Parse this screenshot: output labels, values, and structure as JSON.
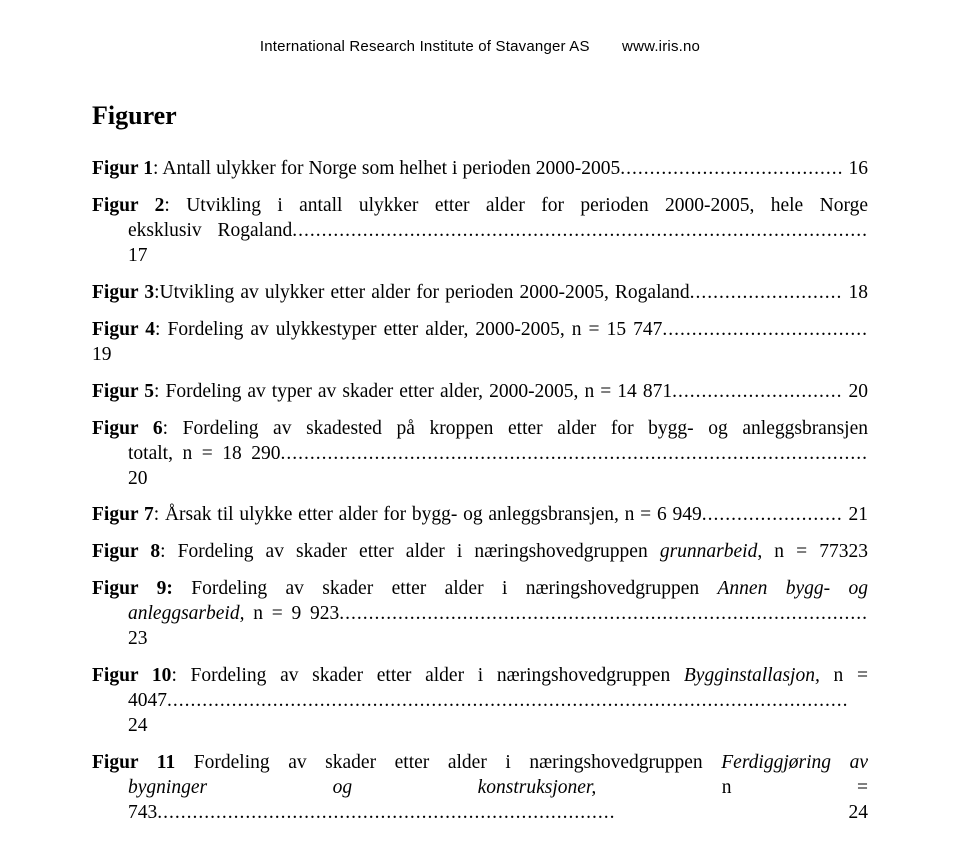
{
  "header": {
    "institute": "International Research Institute of Stavanger AS",
    "url": "www.iris.no"
  },
  "section_title": "Figurer",
  "entries": [
    {
      "label_bold": "Figur 1",
      "text": ": Antall ulykker for Norge som helhet i perioden 2000-2005",
      "page": "16",
      "two_line": false
    },
    {
      "label_bold": "Figur 2",
      "line1": ": Utvikling i antall ulykker etter alder for perioden 2000-2005, hele Norge",
      "line2_text": "eksklusiv Rogaland",
      "page": "17",
      "two_line": true
    },
    {
      "label_bold": "Figur 3",
      "text": ":Utvikling av ulykker etter alder for perioden 2000-2005, Rogaland",
      "page": "18",
      "two_line": false
    },
    {
      "label_bold": "Figur 4",
      "text": ": Fordeling av ulykkestyper etter alder, 2000-2005, n = 15 747",
      "page": "19",
      "two_line": false
    },
    {
      "label_bold": "Figur 5",
      "text": ": Fordeling av typer av skader etter alder, 2000-2005, n = 14 871",
      "page": "20",
      "two_line": false
    },
    {
      "label_bold": "Figur 6",
      "line1": ": Fordeling av skadested på kroppen etter alder for bygg- og anleggsbransjen",
      "line2_text": "totalt, n = 18 290",
      "page": "20",
      "two_line": true
    },
    {
      "label_bold": "Figur 7",
      "text": ": Årsak til ulykke etter alder for bygg- og anleggsbransjen, n = 6 949",
      "page": "21",
      "two_line": false
    },
    {
      "label_bold": "Figur 8",
      "text_pre": ": Fordeling av skader etter alder i næringshovedgruppen ",
      "text_italic": "grunnarbeid",
      "text_post": ", n = 77323",
      "page": "",
      "two_line": false,
      "no_leader": true
    },
    {
      "label_bold": "Figur 9:",
      "line1_pre": " Fordeling av skader etter alder i næringshovedgruppen ",
      "line1_italic": "Annen bygg- og",
      "line2_italic": "anleggsarbeid, ",
      "line2_text": "n = 9 923",
      "page": "23",
      "two_line": true
    },
    {
      "label_bold": "Figur 10",
      "line1_pre": ": Fordeling av skader etter alder i næringshovedgruppen ",
      "line1_italic": "Bygginstallasjon, ",
      "line1_post": "n =",
      "line2_text": "4047",
      "page": "24",
      "two_line": true
    },
    {
      "label_bold": "Figur 11",
      "line1_pre": " Fordeling av skader etter alder i næringshovedgruppen ",
      "line1_italic": "Ferdiggjøring av",
      "line2_italic": "bygninger og konstruksjoner, ",
      "line2_text": "n = 743",
      "page": "24",
      "two_line": true
    }
  ]
}
